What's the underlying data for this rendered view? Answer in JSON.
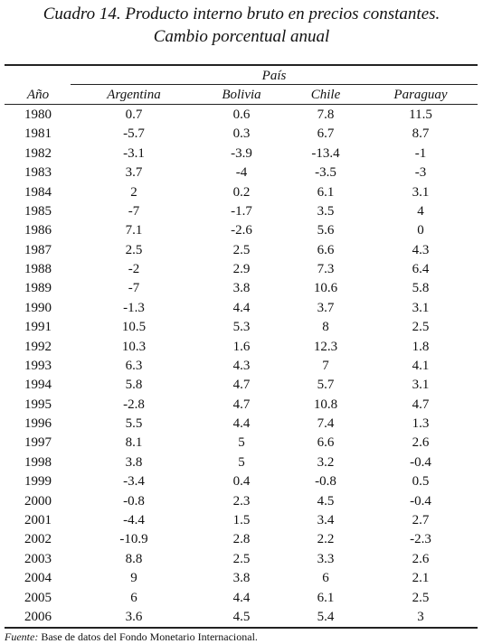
{
  "header": {
    "title": [
      "Cuadro 14. Producto interno bruto en precios constantes.",
      "Cambio porcentual anual"
    ]
  },
  "table": {
    "group_header": "País",
    "columns": [
      "Año",
      "Argentina",
      "Bolivia",
      "Chile",
      "Paraguay"
    ],
    "rows": [
      [
        "1980",
        "0.7",
        "0.6",
        "7.8",
        "11.5"
      ],
      [
        "1981",
        "-5.7",
        "0.3",
        "6.7",
        "8.7"
      ],
      [
        "1982",
        "-3.1",
        "-3.9",
        "-13.4",
        "-1"
      ],
      [
        "1983",
        "3.7",
        "-4",
        "-3.5",
        "-3"
      ],
      [
        "1984",
        "2",
        "0.2",
        "6.1",
        "3.1"
      ],
      [
        "1985",
        "-7",
        "-1.7",
        "3.5",
        "4"
      ],
      [
        "1986",
        "7.1",
        "-2.6",
        "5.6",
        "0"
      ],
      [
        "1987",
        "2.5",
        "2.5",
        "6.6",
        "4.3"
      ],
      [
        "1988",
        "-2",
        "2.9",
        "7.3",
        "6.4"
      ],
      [
        "1989",
        "-7",
        "3.8",
        "10.6",
        "5.8"
      ],
      [
        "1990",
        "-1.3",
        "4.4",
        "3.7",
        "3.1"
      ],
      [
        "1991",
        "10.5",
        "5.3",
        "8",
        "2.5"
      ],
      [
        "1992",
        "10.3",
        "1.6",
        "12.3",
        "1.8"
      ],
      [
        "1993",
        "6.3",
        "4.3",
        "7",
        "4.1"
      ],
      [
        "1994",
        "5.8",
        "4.7",
        "5.7",
        "3.1"
      ],
      [
        "1995",
        "-2.8",
        "4.7",
        "10.8",
        "4.7"
      ],
      [
        "1996",
        "5.5",
        "4.4",
        "7.4",
        "1.3"
      ],
      [
        "1997",
        "8.1",
        "5",
        "6.6",
        "2.6"
      ],
      [
        "1998",
        "3.8",
        "5",
        "3.2",
        "-0.4"
      ],
      [
        "1999",
        "-3.4",
        "0.4",
        "-0.8",
        "0.5"
      ],
      [
        "2000",
        "-0.8",
        "2.3",
        "4.5",
        "-0.4"
      ],
      [
        "2001",
        "-4.4",
        "1.5",
        "3.4",
        "2.7"
      ],
      [
        "2002",
        "-10.9",
        "2.8",
        "2.2",
        "-2.3"
      ],
      [
        "2003",
        "8.8",
        "2.5",
        "3.3",
        "2.6"
      ],
      [
        "2004",
        "9",
        "3.8",
        "6",
        "2.1"
      ],
      [
        "2005",
        "6",
        "4.4",
        "6.1",
        "2.5"
      ],
      [
        "2006",
        "3.6",
        "4.5",
        "5.4",
        "3"
      ]
    ]
  },
  "footer": {
    "source_label": "Fuente:",
    "source_text": "Base de datos del Fondo Monetario Internacional."
  }
}
